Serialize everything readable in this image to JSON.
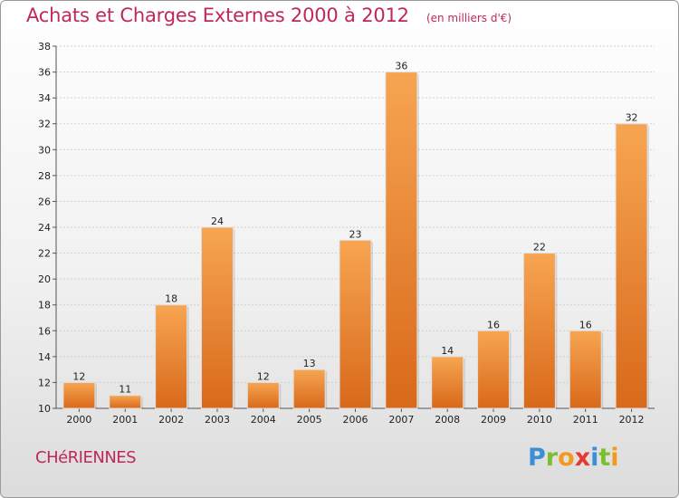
{
  "chart_data": {
    "type": "bar",
    "title": "Achats et Charges Externes 2000 à 2012",
    "subtitle": "(en milliers d'€)",
    "categories": [
      "2000",
      "2001",
      "2002",
      "2003",
      "2004",
      "2005",
      "2006",
      "2007",
      "2008",
      "2009",
      "2010",
      "2011",
      "2012"
    ],
    "values": [
      12,
      11,
      18,
      24,
      12,
      13,
      23,
      36,
      14,
      16,
      22,
      16,
      32
    ],
    "ylim": [
      10,
      38
    ],
    "yticks": [
      10,
      12,
      14,
      16,
      18,
      20,
      22,
      24,
      26,
      28,
      30,
      32,
      34,
      36,
      38
    ],
    "grid": true,
    "bar_color": "#f0862a",
    "xlabel": "",
    "ylabel": ""
  },
  "footer": {
    "commune": "CHéRIENNES",
    "logo_letters": [
      {
        "ch": "P",
        "color": "#3a8fd6"
      },
      {
        "ch": "r",
        "color": "#7bbf2e"
      },
      {
        "ch": "o",
        "color": "#f29a1c"
      },
      {
        "ch": "x",
        "color": "#e53a2f"
      },
      {
        "ch": "i",
        "color": "#3a8fd6"
      },
      {
        "ch": "t",
        "color": "#7bbf2e"
      },
      {
        "ch": "i",
        "color": "#f29a1c"
      }
    ]
  },
  "colors": {
    "title": "#c0285a",
    "grid": "#cfcfcf"
  }
}
